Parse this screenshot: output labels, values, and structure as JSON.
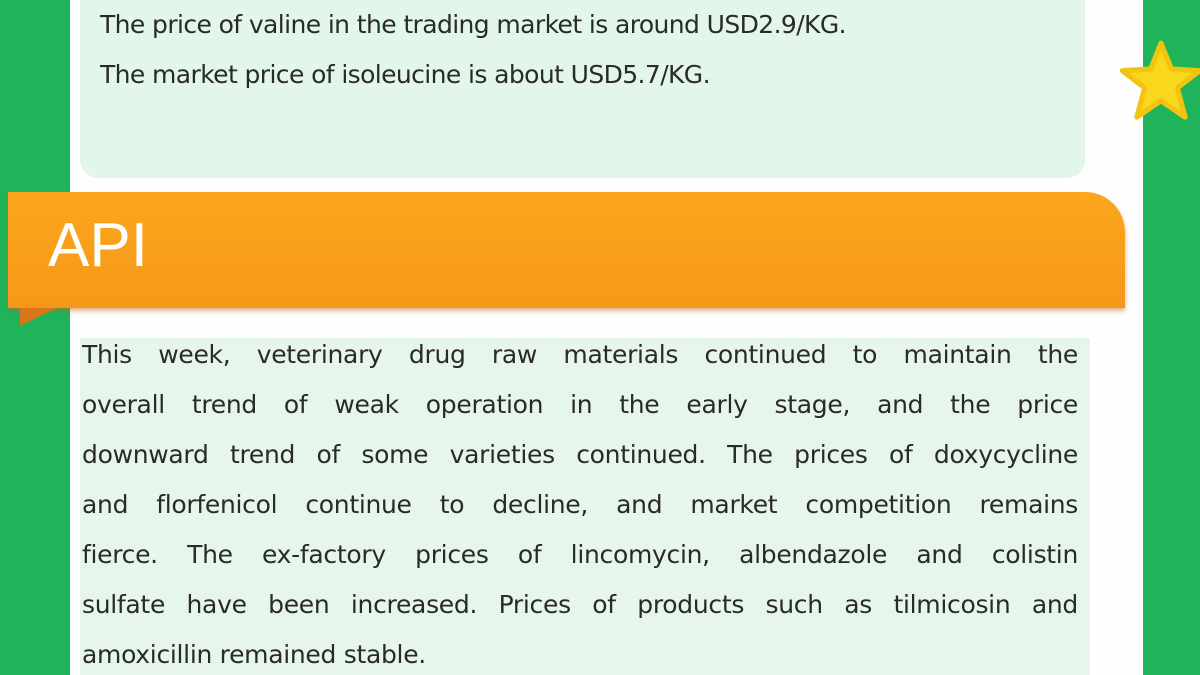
{
  "top_section": {
    "lines": [
      "The price of valine in the trading market is around USD2.9/KG.",
      "The market price of isoleucine is about USD5.7/KG."
    ]
  },
  "api_section": {
    "title": "API",
    "banner_color": "#f99f1b",
    "lines": [
      "This week, veterinary drug raw materials continued to maintain the",
      "overall trend of weak operation in the early stage, and the price",
      "downward trend of some varieties continued. The prices of doxycycline",
      "and florfenicol continue to decline, and market competition remains",
      "fierce. The ex-factory prices of lincomycin, albendazole and colistin",
      "sulfate have been increased. Prices of products such as tilmicosin and",
      "amoxicillin remained stable."
    ]
  },
  "decoration": {
    "icon": "star-icon",
    "background_color": "#1fb35a"
  }
}
